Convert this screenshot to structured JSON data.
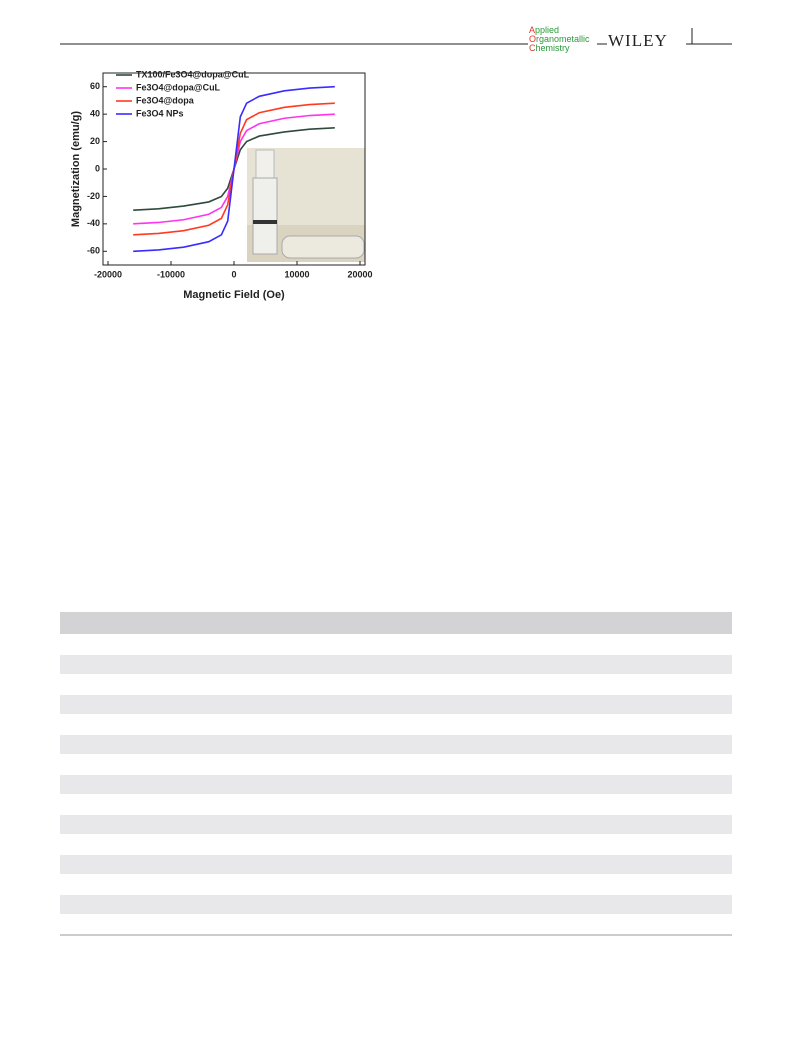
{
  "header": {
    "journal": [
      "Applied",
      "Organometallic",
      "Chemistry"
    ],
    "publisher": "WILEY"
  },
  "chart_data": {
    "type": "line",
    "x_label": "Magnetic Field (Oe)",
    "y_label": "Magnetization (emu/g)",
    "x": [
      -16000,
      -12000,
      -8000,
      -4000,
      -2000,
      -1000,
      0,
      1000,
      2000,
      4000,
      8000,
      12000,
      16000
    ],
    "series": [
      {
        "name": "TX100/Fe3O4@dopa@CuL",
        "color": "#2f4a3c",
        "values": [
          -30,
          -29,
          -27,
          -24,
          -20,
          -14,
          0,
          14,
          20,
          24,
          27,
          29,
          30
        ]
      },
      {
        "name": "Fe3O4@dopa@CuL",
        "color": "#ff33ee",
        "values": [
          -40,
          -39,
          -37,
          -33,
          -28,
          -20,
          0,
          20,
          28,
          33,
          37,
          39,
          40
        ]
      },
      {
        "name": "Fe3O4@dopa",
        "color": "#ff3b1f",
        "values": [
          -48,
          -47,
          -45,
          -41,
          -36,
          -26,
          0,
          26,
          36,
          41,
          45,
          47,
          48
        ]
      },
      {
        "name": "Fe3O4 NPs",
        "color": "#3a2cff",
        "values": [
          -60,
          -59,
          -57,
          -53,
          -48,
          -38,
          0,
          38,
          48,
          53,
          57,
          59,
          60
        ]
      }
    ],
    "xlim": [
      -20000,
      20000
    ],
    "xticks": [
      -20000,
      -10000,
      0,
      10000,
      20000
    ],
    "ylim": [
      -70,
      70
    ],
    "yticks": [
      -60,
      -40,
      -20,
      0,
      20,
      40,
      60
    ],
    "legend": "upper left"
  }
}
